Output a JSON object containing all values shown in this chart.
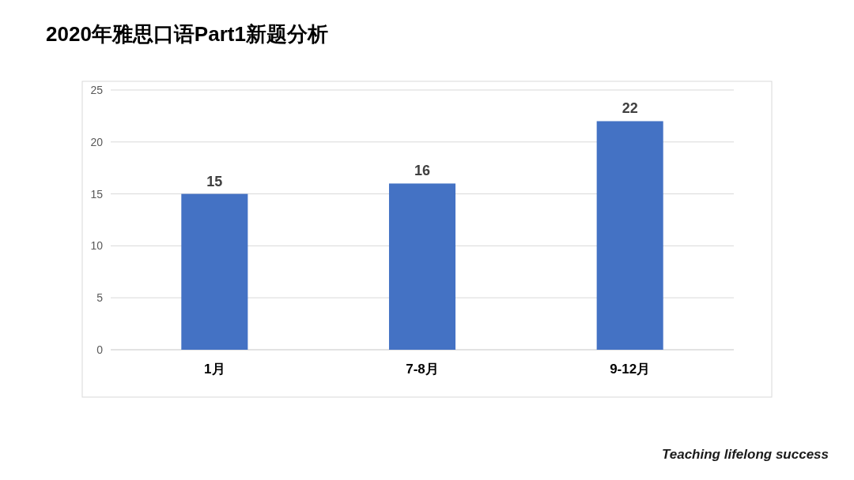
{
  "chart_data": {
    "type": "bar",
    "title": "2020年雅思口语Part1新题分析",
    "categories": [
      "1月",
      "7-8月",
      "9-12月"
    ],
    "values": [
      15,
      16,
      22
    ],
    "color": "#4472c4",
    "ylim": [
      0,
      25
    ],
    "yticks": [
      0,
      5,
      10,
      15,
      20,
      25
    ],
    "grid": "y",
    "data_labels": true,
    "annotations": [
      "Teaching lifelong success"
    ]
  }
}
